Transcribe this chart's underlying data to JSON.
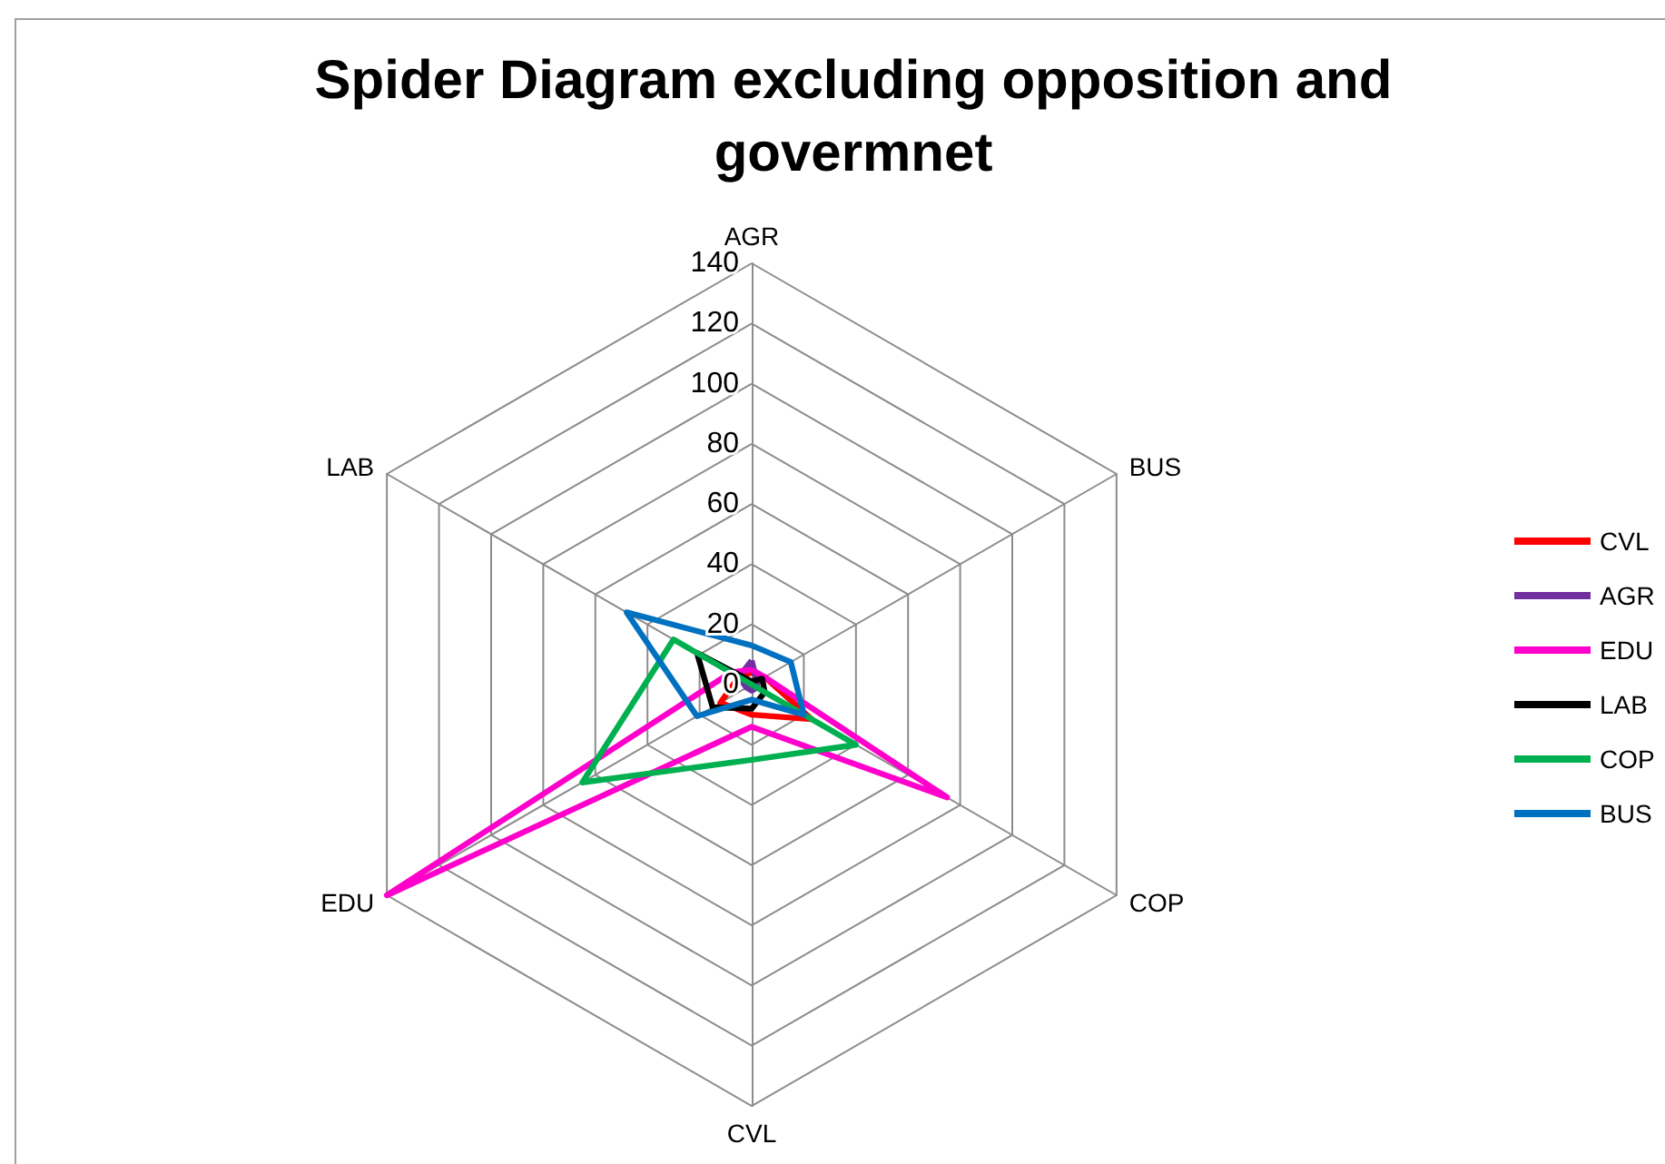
{
  "chart_data": {
    "type": "radar",
    "title": "Spider Diagram excluding opposition and govermnet",
    "categories": [
      "AGR",
      "BUS",
      "COP",
      "CVL",
      "EDU",
      "LAB"
    ],
    "series": [
      {
        "name": "CVL",
        "color": "#ff0000",
        "values": [
          4,
          5,
          23,
          10,
          12,
          5
        ]
      },
      {
        "name": "AGR",
        "color": "#7030a0",
        "values": [
          8,
          2,
          2,
          2,
          2,
          5
        ]
      },
      {
        "name": "EDU",
        "color": "#ff00cc",
        "values": [
          5,
          5,
          75,
          14,
          140,
          8
        ]
      },
      {
        "name": "LAB",
        "color": "#000000",
        "values": [
          1,
          4,
          5,
          8,
          15,
          21
        ]
      },
      {
        "name": "COP",
        "color": "#00b050",
        "values": [
          0,
          0,
          40,
          25,
          65,
          30
        ]
      },
      {
        "name": "BUS",
        "color": "#0070c0",
        "values": [
          13,
          15,
          20,
          5,
          21,
          48
        ]
      }
    ],
    "ylim": [
      0,
      140
    ],
    "yticks": [
      0,
      20,
      40,
      60,
      80,
      100,
      120,
      140
    ],
    "grid": true,
    "legend": "right",
    "marker": "none",
    "line_style": "solid"
  }
}
